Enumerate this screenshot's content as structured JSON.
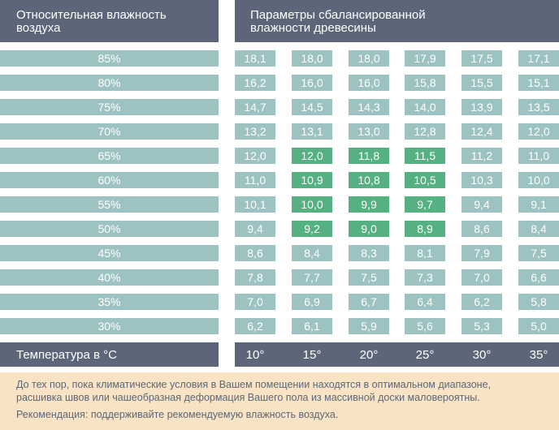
{
  "header": {
    "left_title_line1": "Относительная влажность",
    "left_title_line2": "воздуха",
    "right_title_line1": "Параметры сбалансированной",
    "right_title_line2": "влажности древесины"
  },
  "rows": [
    {
      "humidity": "85%",
      "values": [
        "18,1",
        "18,0",
        "18,0",
        "17,9",
        "17,5",
        "17,1"
      ],
      "highlight": [
        false,
        false,
        false,
        false,
        false,
        false
      ]
    },
    {
      "humidity": "80%",
      "values": [
        "16,2",
        "16,0",
        "16,0",
        "15,8",
        "15,5",
        "15,1"
      ],
      "highlight": [
        false,
        false,
        false,
        false,
        false,
        false
      ]
    },
    {
      "humidity": "75%",
      "values": [
        "14,7",
        "14,5",
        "14,3",
        "14,0",
        "13,9",
        "13,5"
      ],
      "highlight": [
        false,
        false,
        false,
        false,
        false,
        false
      ]
    },
    {
      "humidity": "70%",
      "values": [
        "13,2",
        "13,1",
        "13,0",
        "12,8",
        "12,4",
        "12,0"
      ],
      "highlight": [
        false,
        false,
        false,
        false,
        false,
        false
      ]
    },
    {
      "humidity": "65%",
      "values": [
        "12,0",
        "12,0",
        "11,8",
        "11,5",
        "11,2",
        "11,0"
      ],
      "highlight": [
        false,
        true,
        true,
        true,
        false,
        false
      ]
    },
    {
      "humidity": "60%",
      "values": [
        "11,0",
        "10,9",
        "10,8",
        "10,5",
        "10,3",
        "10,0"
      ],
      "highlight": [
        false,
        true,
        true,
        true,
        false,
        false
      ]
    },
    {
      "humidity": "55%",
      "values": [
        "10,1",
        "10,0",
        "9,9",
        "9,7",
        "9,4",
        "9,1"
      ],
      "highlight": [
        false,
        true,
        true,
        true,
        false,
        false
      ]
    },
    {
      "humidity": "50%",
      "values": [
        "9,4",
        "9,2",
        "9,0",
        "8,9",
        "8,6",
        "8,4"
      ],
      "highlight": [
        false,
        true,
        true,
        true,
        false,
        false
      ]
    },
    {
      "humidity": "45%",
      "values": [
        "8,6",
        "8,4",
        "8,3",
        "8,1",
        "7,9",
        "7,5"
      ],
      "highlight": [
        false,
        false,
        false,
        false,
        false,
        false
      ]
    },
    {
      "humidity": "40%",
      "values": [
        "7,8",
        "7,7",
        "7,5",
        "7,3",
        "7,0",
        "6,6"
      ],
      "highlight": [
        false,
        false,
        false,
        false,
        false,
        false
      ]
    },
    {
      "humidity": "35%",
      "values": [
        "7,0",
        "6,9",
        "6,7",
        "6,4",
        "6,2",
        "5,8"
      ],
      "highlight": [
        false,
        false,
        false,
        false,
        false,
        false
      ]
    },
    {
      "humidity": "30%",
      "values": [
        "6,2",
        "6,1",
        "5,9",
        "5,6",
        "5,3",
        "5,0"
      ],
      "highlight": [
        false,
        false,
        false,
        false,
        false,
        false
      ]
    }
  ],
  "temperature": {
    "label": "Температура в °C",
    "values": [
      "10°",
      "15°",
      "20°",
      "25°",
      "30°",
      "35°"
    ]
  },
  "colors": {
    "header_bg": "#5c6678",
    "cell_bg": "#9cc3c2",
    "highlight_bg": "#55b181",
    "note_bg": "#f8e4c4"
  },
  "note": {
    "line1": "До тех пор, пока климатические условия в Вашем помещении находятся в оптимальном диапазоне,",
    "line2": "расшивка швов или чашеобразная деформация Вашего пола из массивной доски маловероятны.",
    "recommendation": "Рекомендация: поддерживайте рекомендуемую влажность воздуха."
  }
}
